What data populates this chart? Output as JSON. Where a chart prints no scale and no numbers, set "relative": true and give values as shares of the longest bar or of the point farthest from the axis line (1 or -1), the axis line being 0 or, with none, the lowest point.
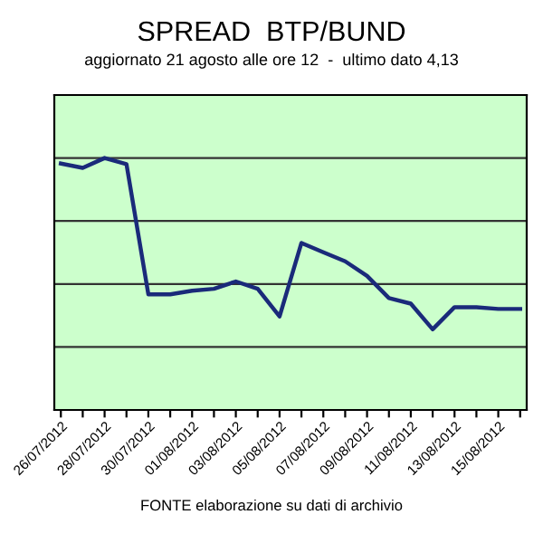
{
  "chart_data": {
    "type": "line",
    "title": "SPREAD  BTP/BUND",
    "subtitle": "aggiornato 21 agosto alle ore 12  -  ultimo dato 4,13",
    "annotations": [
      "FONTE elaborazione su dati di archivio"
    ],
    "relative": true,
    "grid": "y",
    "marker": "none",
    "line_style": "solid",
    "categories": [
      "26/07/2012",
      null,
      "28/07/2012",
      null,
      "30/07/2012",
      null,
      "01/08/2012",
      null,
      "03/08/2012",
      null,
      "05/08/2012",
      null,
      "07/08/2012",
      null,
      "09/08/2012",
      null,
      "11/08/2012",
      null,
      "13/08/2012",
      null,
      "15/08/2012",
      null
    ],
    "series": [
      {
        "color": "#1a2a7a",
        "values": [
          0.978,
          0.961,
          1,
          0.976,
          0.459,
          0.459,
          0.473,
          0.481,
          0.51,
          0.481,
          0.371,
          0.663,
          0.626,
          0.59,
          0.532,
          0.444,
          0.422,
          0.32,
          0.408,
          0.408,
          0.401,
          0.401
        ]
      }
    ]
  }
}
